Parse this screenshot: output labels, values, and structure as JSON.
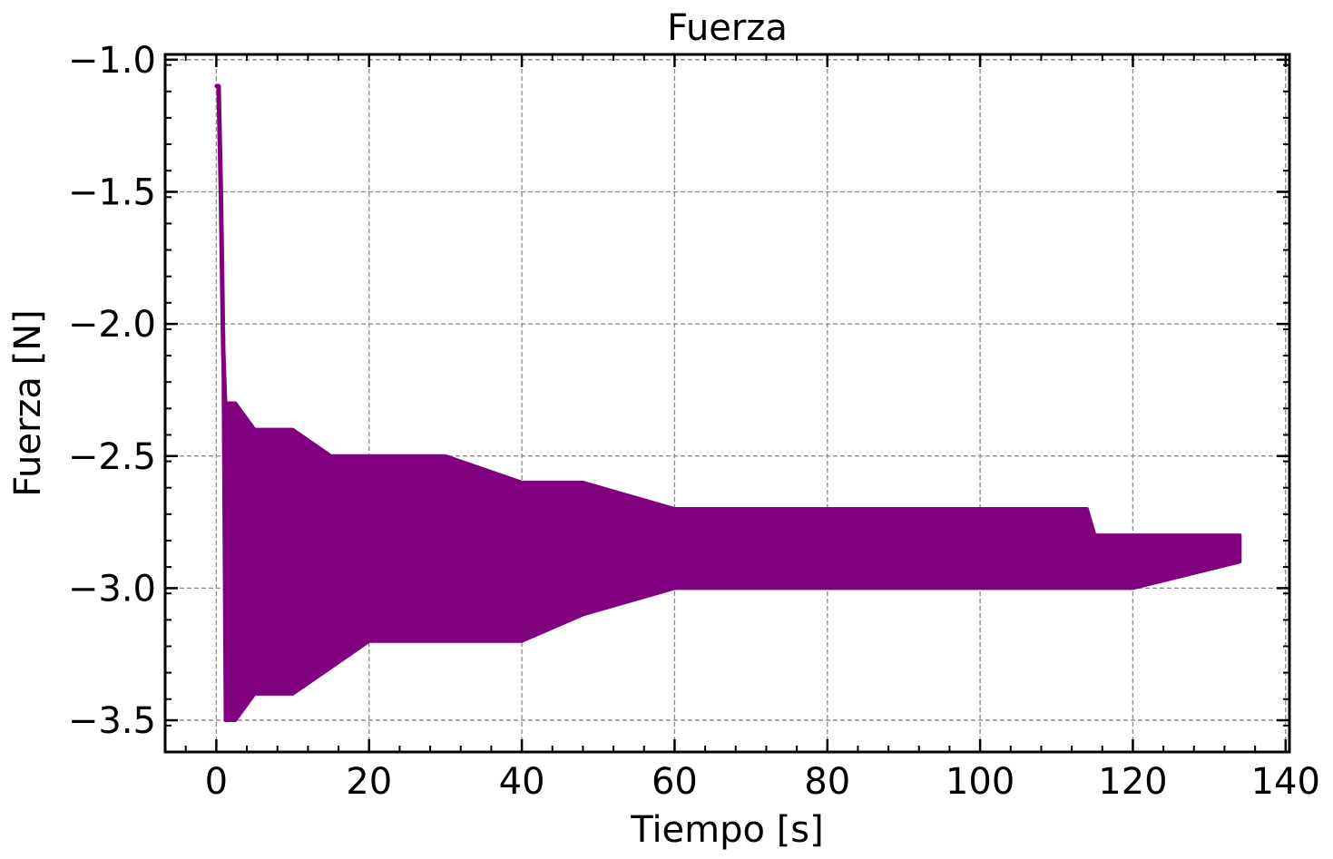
{
  "chart_data": {
    "type": "line",
    "title": "Fuerza",
    "xlabel": "Tiempo [s]",
    "ylabel": "Fuerza [N]",
    "xlim": [
      -6.7,
      140.5
    ],
    "ylim": [
      -3.62,
      -0.98
    ],
    "xticks": [
      0,
      20,
      40,
      60,
      80,
      100,
      120,
      140
    ],
    "xtick_labels": [
      "0",
      "20",
      "40",
      "60",
      "80",
      "100",
      "120",
      "140"
    ],
    "yticks": [
      -1.0,
      -1.5,
      -2.0,
      -2.5,
      -3.0,
      -3.5
    ],
    "ytick_labels": [
      "−1.0",
      "−1.5",
      "−2.0",
      "−2.5",
      "−3.0",
      "−3.5"
    ],
    "grid": true,
    "line_color": "#800080",
    "series": [
      {
        "x": [
          0,
          0.3,
          0.6,
          0.9,
          1.2,
          1.5,
          2.5,
          5,
          10,
          15,
          20,
          30,
          40,
          48,
          60,
          80,
          100,
          114,
          115,
          120,
          134
        ],
        "y": [
          -1.1,
          -1.1,
          -1.5,
          -2.1,
          -2.35,
          -2.8,
          -2.9,
          -2.9,
          -2.9,
          -2.9,
          -2.85,
          -2.9,
          -2.9,
          -2.9,
          -2.85,
          -2.85,
          -2.85,
          -2.85,
          -2.8,
          -2.85,
          -2.85
        ],
        "upper": [
          -1.1,
          -1.1,
          -1.5,
          -2.1,
          -2.3,
          -2.3,
          -2.3,
          -2.4,
          -2.4,
          -2.5,
          -2.5,
          -2.5,
          -2.6,
          -2.6,
          -2.7,
          -2.7,
          -2.7,
          -2.7,
          -2.8,
          -2.8,
          -2.8
        ],
        "lower": [
          -1.1,
          -1.1,
          -1.5,
          -2.1,
          -3.5,
          -3.5,
          -3.5,
          -3.4,
          -3.4,
          -3.3,
          -3.2,
          -3.2,
          -3.2,
          -3.1,
          -3.0,
          -3.0,
          -3.0,
          -3.0,
          -3.0,
          -3.0,
          -2.9
        ]
      }
    ]
  }
}
